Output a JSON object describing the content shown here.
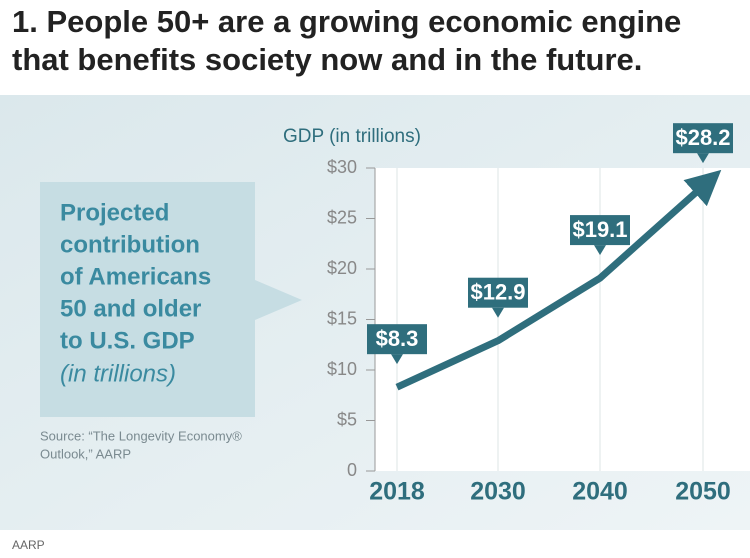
{
  "header": {
    "title": [
      "1. People 50+ are a growing economic engine",
      "that benefits society now and in the future."
    ]
  },
  "chart_data": {
    "type": "line",
    "y_axis_label": "GDP (in trillions)",
    "categories": [
      "2018",
      "2030",
      "2040",
      "2050"
    ],
    "values": [
      8.3,
      12.9,
      19.1,
      28.2
    ],
    "value_labels": [
      "$8.3",
      "$12.9",
      "$19.1",
      "$28.2"
    ],
    "color": "#2f6e7d",
    "ylim": [
      0,
      30
    ],
    "yticks": [
      0,
      {
        "value": 5,
        "label": "$5"
      },
      {
        "value": 10,
        "label": "$10"
      },
      {
        "value": 15,
        "label": "$15"
      },
      {
        "value": 20,
        "label": "$20"
      },
      {
        "value": 25,
        "label": "$25"
      },
      {
        "value": 30,
        "label": "$30"
      }
    ],
    "grid": true
  },
  "callout": {
    "lines": [
      "Projected",
      "contribution",
      "of Americans",
      "50 and older",
      "to U.S. GDP"
    ],
    "italic_line": "(in trillions)"
  },
  "source": [
    "Source: “The Longevity Economy®",
    "Outlook,” AARP"
  ],
  "footer": "AARP"
}
